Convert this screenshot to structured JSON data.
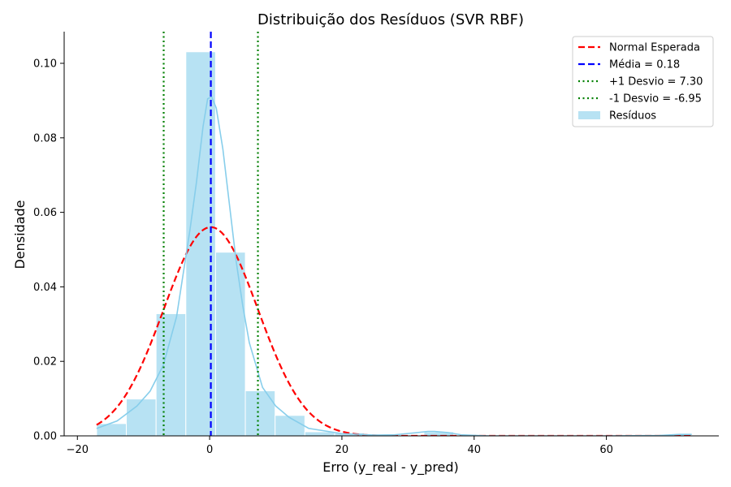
{
  "chart_data": {
    "type": "bar",
    "title": "Distribuição dos Resíduos (SVR RBF)",
    "xlabel": "Erro (y_real - y_pred)",
    "ylabel": "Densidade",
    "xlim": [
      -22,
      77
    ],
    "ylim": [
      0,
      0.1085
    ],
    "xticks": [
      -20,
      0,
      20,
      40,
      60
    ],
    "yticks": [
      0.0,
      0.02,
      0.04,
      0.06,
      0.08,
      0.1
    ],
    "xtick_labels": [
      "−20",
      "0",
      "20",
      "40",
      "60"
    ],
    "ytick_labels": [
      "0.00",
      "0.02",
      "0.04",
      "0.06",
      "0.08",
      "0.10"
    ],
    "grid": false,
    "legend_position": "top-right",
    "histogram": {
      "name": "Resíduos",
      "color": "#87ceeb",
      "bins": [
        {
          "x0": -17.1,
          "x1": -12.6,
          "density": 0.0033
        },
        {
          "x0": -12.6,
          "x1": -8.1,
          "density": 0.0099
        },
        {
          "x0": -8.1,
          "x1": -3.6,
          "density": 0.0328
        },
        {
          "x0": -3.6,
          "x1": 0.9,
          "density": 0.1031
        },
        {
          "x0": 0.9,
          "x1": 5.4,
          "density": 0.0493
        },
        {
          "x0": 5.4,
          "x1": 9.9,
          "density": 0.0121
        },
        {
          "x0": 9.9,
          "x1": 14.4,
          "density": 0.0055
        },
        {
          "x0": 14.4,
          "x1": 18.9,
          "density": 0.0011
        },
        {
          "x0": 18.9,
          "x1": 23.4,
          "density": 0.0008
        },
        {
          "x0": 23.4,
          "x1": 27.9,
          "density": 0.0004
        },
        {
          "x0": 27.9,
          "x1": 32.4,
          "density": 0.0
        },
        {
          "x0": 32.4,
          "x1": 36.9,
          "density": 0.0011
        },
        {
          "x0": 36.9,
          "x1": 41.4,
          "density": 0.0
        },
        {
          "x0": 41.4,
          "x1": 45.9,
          "density": 0.0
        },
        {
          "x0": 45.9,
          "x1": 50.4,
          "density": 0.0
        },
        {
          "x0": 50.4,
          "x1": 54.9,
          "density": 0.0
        },
        {
          "x0": 54.9,
          "x1": 59.4,
          "density": 0.0
        },
        {
          "x0": 59.4,
          "x1": 63.9,
          "density": 0.0
        },
        {
          "x0": 63.9,
          "x1": 68.4,
          "density": 0.0
        },
        {
          "x0": 68.4,
          "x1": 72.9,
          "density": 0.0004
        }
      ]
    },
    "series": [
      {
        "name": "Normal Esperada",
        "kind": "normal-curve",
        "mean": 0.18,
        "std": 7.12,
        "x_range": [
          -17.1,
          72.9
        ],
        "color": "#ff0000",
        "dash": "dashed"
      },
      {
        "name": "Resíduos KDE",
        "kind": "kde-line",
        "color": "#87ceeb",
        "x": [
          -17.1,
          -14,
          -11,
          -9,
          -7,
          -5,
          -3,
          -2,
          -1,
          -0.3,
          0.3,
          1,
          2,
          3,
          4,
          5,
          6,
          8,
          10,
          12,
          15,
          20,
          25,
          28,
          31,
          33,
          34,
          36,
          38,
          42,
          50,
          60,
          68,
          71,
          72.9
        ],
        "y": [
          0.002,
          0.004,
          0.008,
          0.012,
          0.019,
          0.032,
          0.055,
          0.068,
          0.083,
          0.0905,
          0.091,
          0.088,
          0.077,
          0.062,
          0.047,
          0.035,
          0.025,
          0.013,
          0.008,
          0.005,
          0.002,
          0.0006,
          0.0002,
          0.0003,
          0.0008,
          0.0012,
          0.0012,
          0.0009,
          0.0003,
          0.0,
          0.0,
          0.0,
          0.0001,
          0.0004,
          0.0004
        ]
      }
    ],
    "vlines": [
      {
        "name": "Média = 0.18",
        "x": 0.18,
        "color": "#0000ff",
        "dash": "dashed"
      },
      {
        "name": "+1 Desvio = 7.30",
        "x": 7.3,
        "color": "#008000",
        "dash": "dotted"
      },
      {
        "name": "-1 Desvio = -6.95",
        "x": -6.95,
        "color": "#008000",
        "dash": "dotted"
      }
    ],
    "legend": [
      {
        "label": "Normal Esperada",
        "kind": "line",
        "color": "#ff0000",
        "dash": "dashed"
      },
      {
        "label": "Média = 0.18",
        "kind": "line",
        "color": "#0000ff",
        "dash": "dashed"
      },
      {
        "label": "+1 Desvio = 7.30",
        "kind": "line",
        "color": "#008000",
        "dash": "dotted"
      },
      {
        "label": "-1 Desvio = -6.95",
        "kind": "line",
        "color": "#008000",
        "dash": "dotted"
      },
      {
        "label": "Resíduos",
        "kind": "patch",
        "color": "#87ceeb"
      }
    ]
  }
}
